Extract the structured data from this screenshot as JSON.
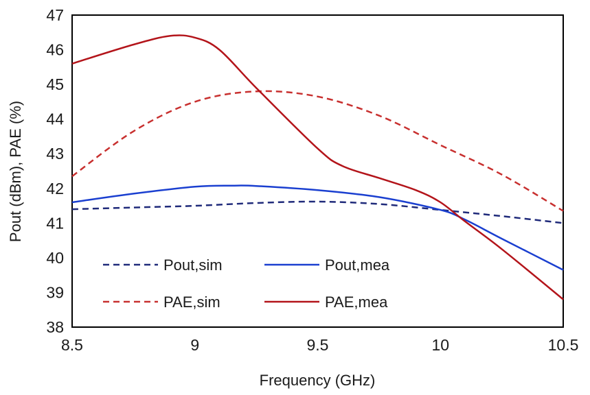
{
  "chart_data": {
    "type": "line",
    "title": "",
    "xlabel": "Frequency (GHz)",
    "ylabel": "Pout (dBm), PAE (%)",
    "xlim": [
      8.5,
      10.5
    ],
    "ylim": [
      38,
      47
    ],
    "xticks": [
      "8.5",
      "9",
      "9.5",
      "10",
      "10.5"
    ],
    "yticks": [
      "38",
      "39",
      "40",
      "41",
      "42",
      "43",
      "44",
      "45",
      "46",
      "47"
    ],
    "grid": false,
    "legend_position": "bottom-left",
    "series": [
      {
        "name": "Pout,sim",
        "color": "#1f2a7a",
        "dash": "dashed",
        "x": [
          8.5,
          8.75,
          9.0,
          9.25,
          9.5,
          9.75,
          10.0,
          10.25,
          10.5
        ],
        "y": [
          41.4,
          41.45,
          41.5,
          41.58,
          41.62,
          41.55,
          41.38,
          41.2,
          41.0
        ]
      },
      {
        "name": "Pout,mea",
        "color": "#1a3fd0",
        "dash": "solid",
        "x": [
          8.5,
          8.75,
          9.0,
          9.15,
          9.25,
          9.5,
          9.75,
          10.0,
          10.1,
          10.25,
          10.5
        ],
        "y": [
          41.6,
          41.85,
          42.05,
          42.08,
          42.07,
          41.95,
          41.75,
          41.38,
          41.1,
          40.55,
          39.65
        ]
      },
      {
        "name": "PAE,sim",
        "color": "#c8302f",
        "dash": "dashed",
        "x": [
          8.5,
          8.75,
          9.0,
          9.25,
          9.5,
          9.75,
          10.0,
          10.25,
          10.5
        ],
        "y": [
          42.35,
          43.65,
          44.5,
          44.8,
          44.65,
          44.1,
          43.25,
          42.4,
          41.35
        ]
      },
      {
        "name": "PAE,mea",
        "color": "#b3141a",
        "dash": "solid",
        "x": [
          8.5,
          8.75,
          8.9,
          9.0,
          9.1,
          9.25,
          9.5,
          9.6,
          9.75,
          9.9,
          10.0,
          10.1,
          10.25,
          10.5
        ],
        "y": [
          45.6,
          46.15,
          46.4,
          46.35,
          46.0,
          44.9,
          43.15,
          42.65,
          42.3,
          41.95,
          41.6,
          41.05,
          40.25,
          38.8
        ]
      }
    ],
    "legend": [
      [
        "Pout,sim",
        "Pout,mea"
      ],
      [
        "PAE,sim",
        "PAE,mea"
      ]
    ]
  }
}
